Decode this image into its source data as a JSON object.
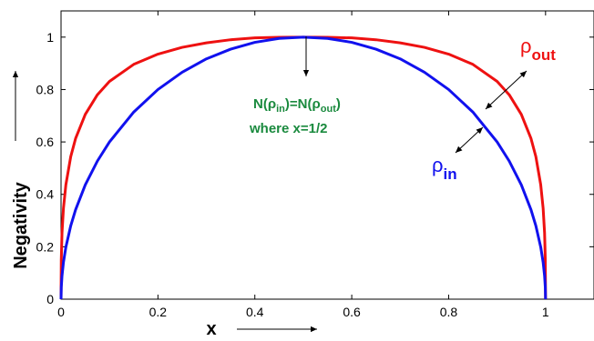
{
  "chart_data": {
    "type": "line",
    "xlabel": "x",
    "ylabel": "Negativity",
    "xlim": [
      0,
      1.1
    ],
    "ylim": [
      0,
      1.1
    ],
    "xticks": [
      "0",
      "0.2",
      "0.4",
      "0.6",
      "0.8",
      "1"
    ],
    "yticks": [
      "0",
      "0.2",
      "0.4",
      "0.6",
      "0.8",
      "1"
    ],
    "grid": false,
    "x": [
      0,
      0.0005,
      0.002,
      0.005,
      0.01,
      0.02,
      0.03,
      0.05,
      0.075,
      0.1,
      0.15,
      0.2,
      0.25,
      0.3,
      0.35,
      0.4,
      0.45,
      0.5,
      0.55,
      0.6,
      0.65,
      0.7,
      0.75,
      0.8,
      0.85,
      0.9,
      0.925,
      0.95,
      0.97,
      0.98,
      0.99,
      0.995,
      0.998,
      0.9995,
      1
    ],
    "series": [
      {
        "name": "out",
        "label_main": "ρ",
        "label_sub": "out",
        "color": "#ee1111",
        "values": [
          0,
          0.151,
          0.253,
          0.347,
          0.437,
          0.544,
          0.613,
          0.705,
          0.78,
          0.831,
          0.896,
          0.935,
          0.961,
          0.978,
          0.99,
          0.997,
          0.9995,
          1.0,
          0.9995,
          0.997,
          0.99,
          0.978,
          0.961,
          0.935,
          0.896,
          0.831,
          0.78,
          0.705,
          0.613,
          0.544,
          0.437,
          0.347,
          0.253,
          0.151,
          0
        ]
      },
      {
        "name": "in",
        "label_main": "ρ",
        "label_sub": "in",
        "color": "#1111ee",
        "values": [
          0,
          0.045,
          0.089,
          0.141,
          0.199,
          0.28,
          0.341,
          0.436,
          0.527,
          0.6,
          0.714,
          0.8,
          0.866,
          0.917,
          0.954,
          0.98,
          0.995,
          1.0,
          0.995,
          0.98,
          0.954,
          0.917,
          0.866,
          0.8,
          0.714,
          0.6,
          0.527,
          0.436,
          0.341,
          0.28,
          0.199,
          0.141,
          0.089,
          0.045,
          0
        ]
      }
    ],
    "annotation": {
      "line1_a": "N(ρ",
      "line1_sub1": "in",
      "line1_b": ")=N(ρ",
      "line1_sub2": "out",
      "line1_c": ")",
      "line2": "where x=1/2",
      "color": "#1a8a3e"
    }
  }
}
